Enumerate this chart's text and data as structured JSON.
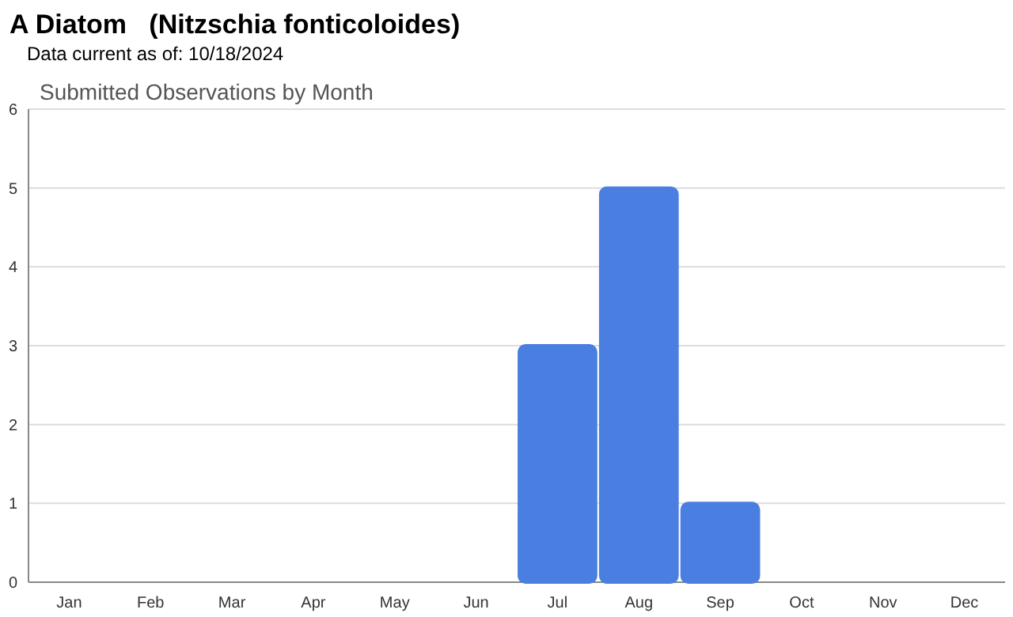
{
  "chart_data": {
    "type": "bar",
    "title": "A Diatom   (Nitzschia fonticoloides)",
    "subtitle": "Data current as of: 10/18/2024",
    "annotations": [
      "Submitted Observations by Month"
    ],
    "categories": [
      "Jan",
      "Feb",
      "Mar",
      "Apr",
      "May",
      "Jun",
      "Jul",
      "Aug",
      "Sep",
      "Oct",
      "Nov",
      "Dec"
    ],
    "values": [
      0,
      0,
      0,
      0,
      0,
      0,
      3,
      5,
      1,
      0,
      0,
      0
    ],
    "color": "#4a7ee0",
    "ylim": [
      0,
      6
    ],
    "yticks": [
      0,
      1,
      2,
      3,
      4,
      5,
      6
    ],
    "grid": "y"
  }
}
